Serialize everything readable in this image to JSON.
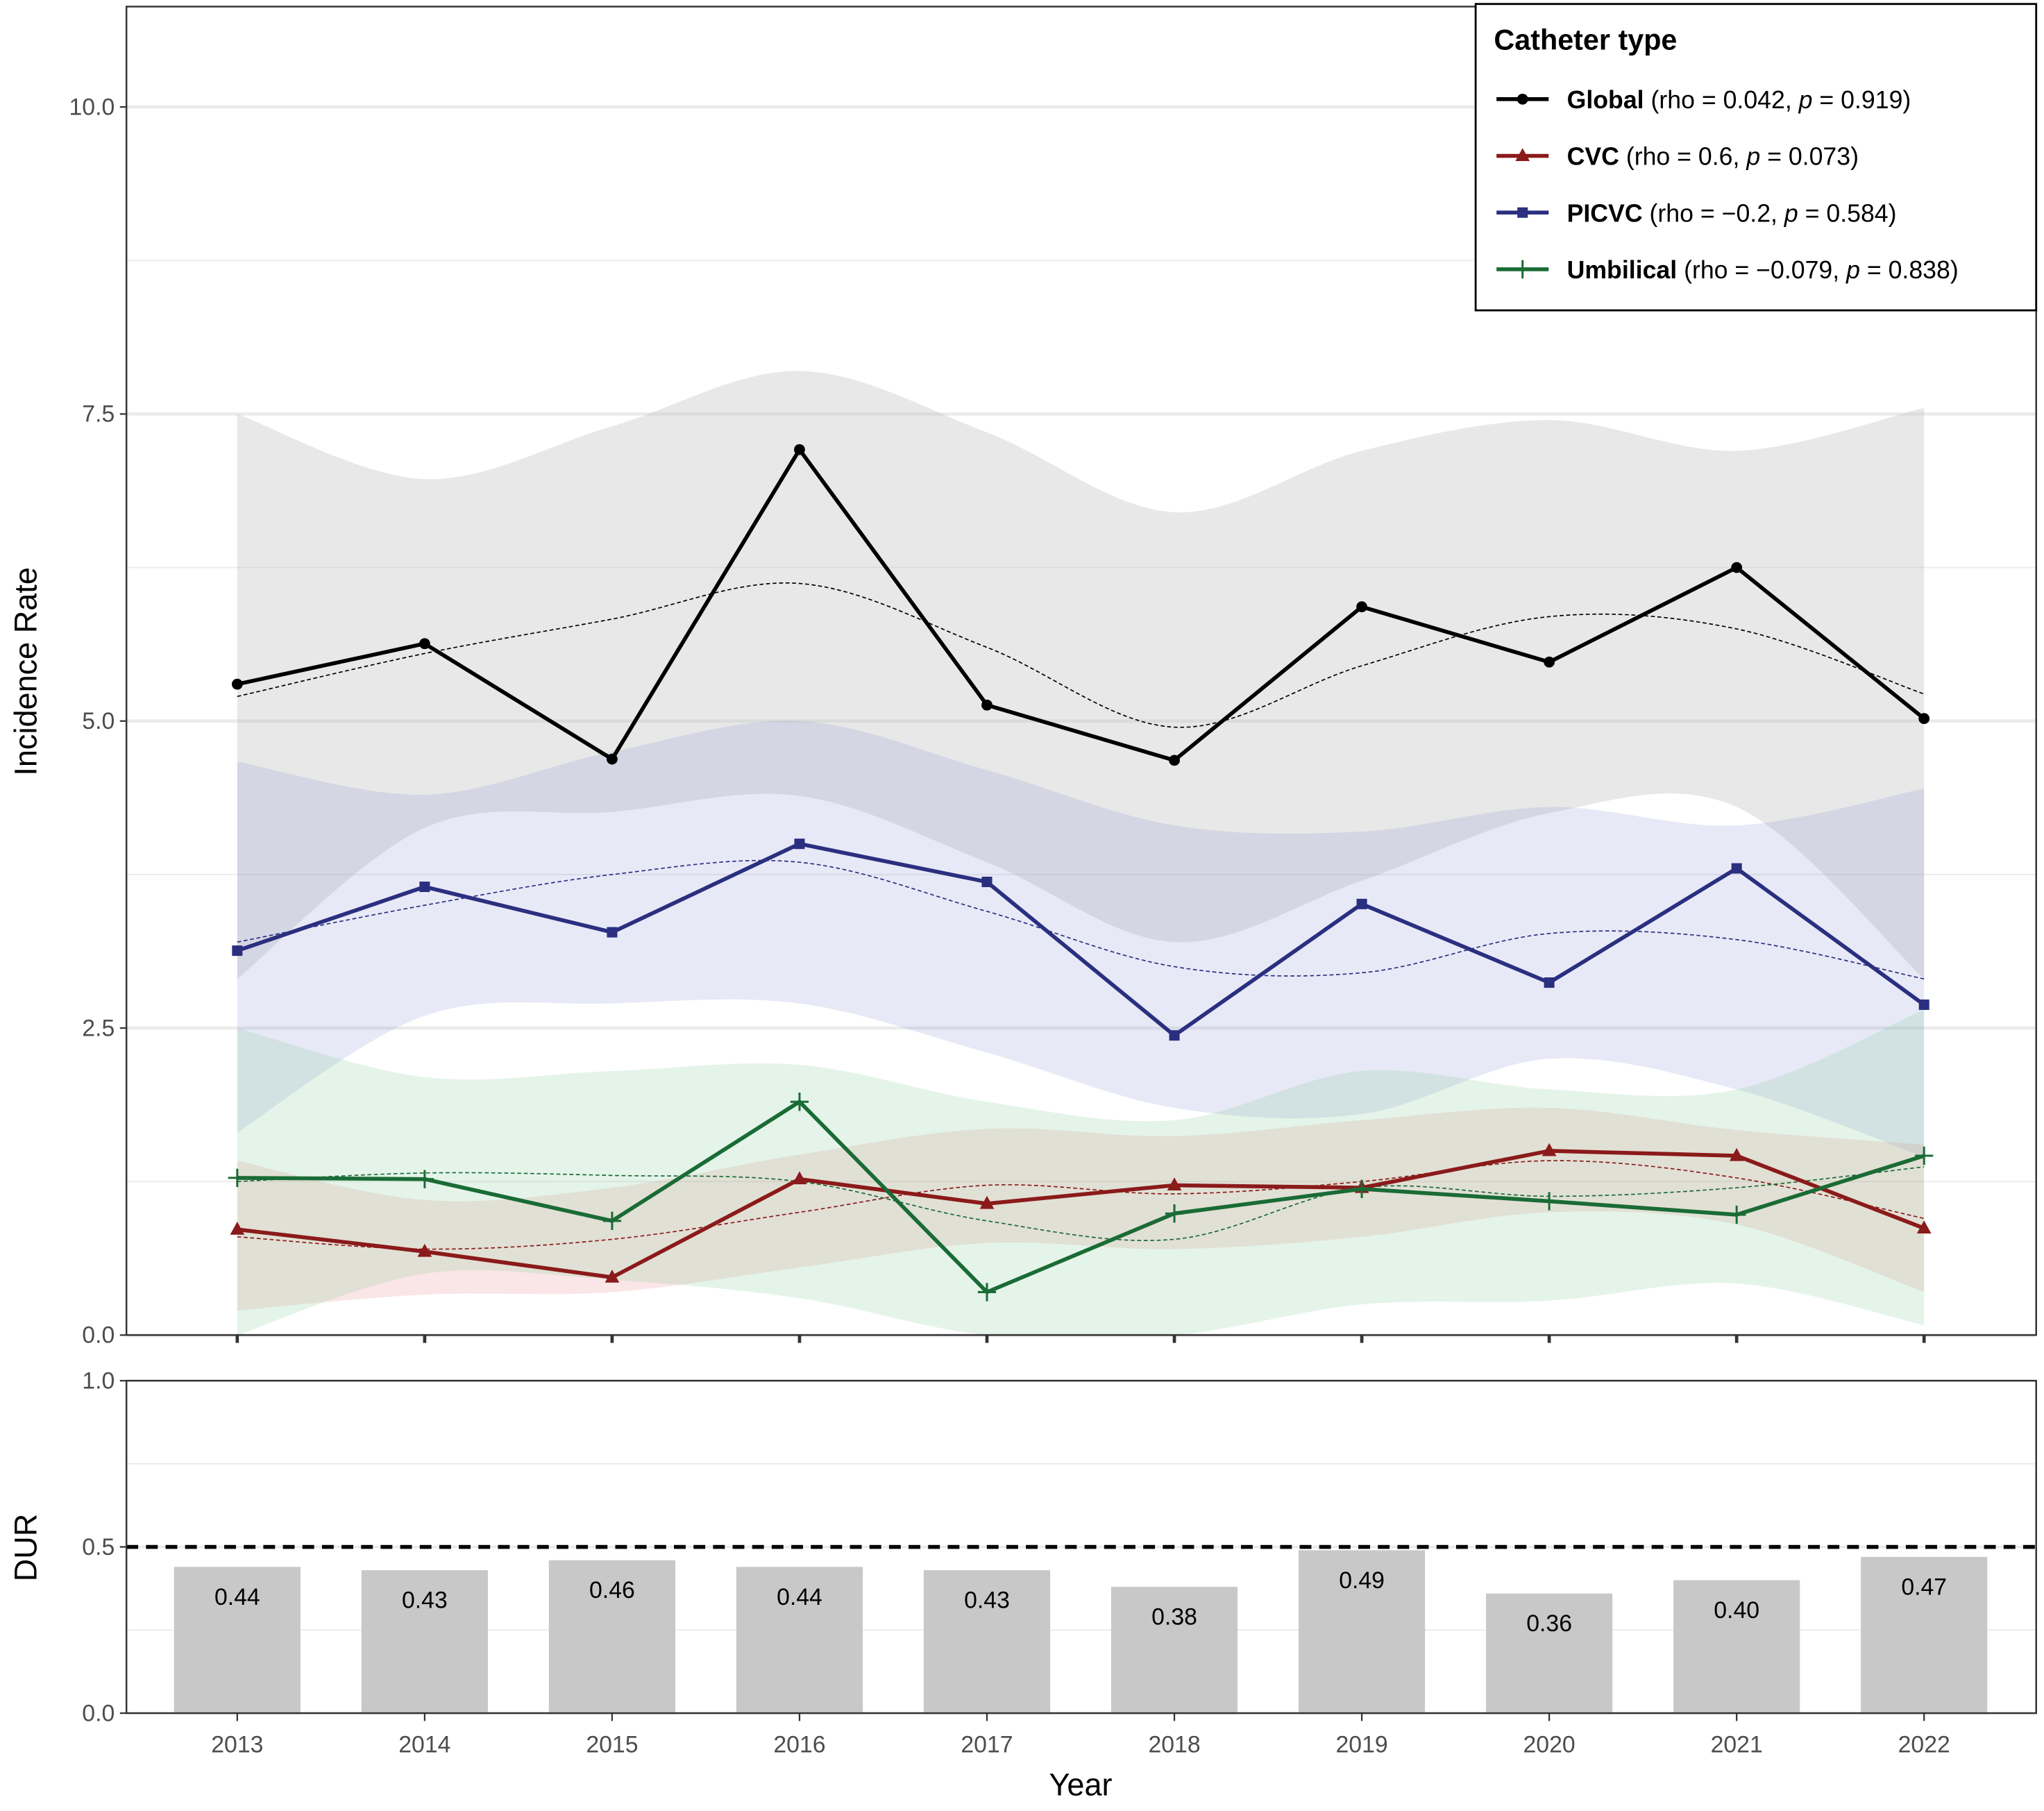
{
  "chart_data": [
    {
      "type": "line",
      "ylabel": "Incidence Rate",
      "x": [
        2013,
        2014,
        2015,
        2016,
        2017,
        2018,
        2019,
        2020,
        2021,
        2022
      ],
      "ylim": [
        0,
        10.8
      ],
      "yticks": [
        "0.0",
        "2.5",
        "5.0",
        "7.5",
        "10.0"
      ],
      "grid": true,
      "legend": {
        "title": "Catheter type",
        "placement": "top-right"
      },
      "series": [
        {
          "name": "Global",
          "stats_rho": "(rho = 0.042, ",
          "p_label": "p",
          "stats_p": " = 0.919)",
          "color": "#000000",
          "ribbon": "#bdbdbd",
          "marker": "circle",
          "values": [
            5.3,
            5.63,
            4.69,
            7.21,
            5.13,
            4.68,
            5.93,
            5.48,
            6.25,
            5.02
          ],
          "smooth": [
            5.2,
            5.55,
            5.83,
            6.12,
            5.6,
            4.95,
            5.45,
            5.85,
            5.75,
            5.22
          ],
          "upper": [
            7.5,
            6.97,
            7.4,
            7.85,
            7.35,
            6.7,
            7.2,
            7.45,
            7.2,
            7.55
          ],
          "lower": [
            2.9,
            4.13,
            4.26,
            4.39,
            3.85,
            3.2,
            3.7,
            4.25,
            4.3,
            2.9
          ]
        },
        {
          "name": "CVC",
          "stats_rho": "(rho = 0.6, ",
          "p_label": "p",
          "stats_p": " = 0.073)",
          "color": "#8b1a1a",
          "ribbon": "#e88080",
          "marker": "triangle",
          "values": [
            0.86,
            0.68,
            0.47,
            1.27,
            1.07,
            1.22,
            1.2,
            1.5,
            1.46,
            0.87
          ],
          "smooth": [
            0.8,
            0.7,
            0.78,
            1.0,
            1.22,
            1.15,
            1.25,
            1.42,
            1.28,
            0.95
          ],
          "upper": [
            1.42,
            1.1,
            1.2,
            1.47,
            1.68,
            1.62,
            1.75,
            1.85,
            1.67,
            1.55
          ],
          "lower": [
            0.2,
            0.33,
            0.35,
            0.55,
            0.75,
            0.7,
            0.8,
            1.0,
            0.9,
            0.35
          ]
        },
        {
          "name": "PICVC",
          "stats_rho": "(rho = −0.2, ",
          "p_label": "p",
          "stats_p": " = 0.584)",
          "color": "#2a2f7f",
          "ribbon": "#8c90d8",
          "marker": "square",
          "values": [
            3.13,
            3.65,
            3.28,
            4.0,
            3.69,
            2.44,
            3.51,
            2.87,
            3.8,
            2.69
          ],
          "smooth": [
            3.2,
            3.5,
            3.75,
            3.85,
            3.45,
            3.0,
            2.95,
            3.27,
            3.22,
            2.9
          ],
          "upper": [
            4.67,
            4.4,
            4.75,
            5.0,
            4.6,
            4.15,
            4.1,
            4.3,
            4.15,
            4.45
          ],
          "lower": [
            1.65,
            2.6,
            2.7,
            2.7,
            2.3,
            1.85,
            1.8,
            2.25,
            2.0,
            1.45
          ]
        },
        {
          "name": "Umbilical",
          "stats_rho": "(rho = −0.079, ",
          "p_label": "p",
          "stats_p": " = 0.838)",
          "color": "#1a6b35",
          "ribbon": "#7fc98f",
          "marker": "plus",
          "values": [
            1.28,
            1.27,
            0.93,
            1.9,
            0.35,
            0.99,
            1.19,
            1.09,
            0.98,
            1.46
          ],
          "smooth": [
            1.25,
            1.32,
            1.3,
            1.25,
            0.93,
            0.78,
            1.2,
            1.13,
            1.2,
            1.37
          ],
          "upper": [
            2.5,
            2.1,
            2.15,
            2.2,
            1.9,
            1.75,
            2.15,
            2.0,
            2.0,
            2.65
          ],
          "lower": [
            0.0,
            0.5,
            0.45,
            0.3,
            0.0,
            0.0,
            0.25,
            0.28,
            0.42,
            0.08
          ]
        }
      ]
    },
    {
      "type": "bar",
      "xlabel": "Year",
      "ylabel": "DUR",
      "categories": [
        "2013",
        "2014",
        "2015",
        "2016",
        "2017",
        "2018",
        "2019",
        "2020",
        "2021",
        "2022"
      ],
      "values": [
        0.44,
        0.43,
        0.46,
        0.44,
        0.43,
        0.38,
        0.49,
        0.36,
        0.4,
        0.47
      ],
      "labels": [
        "0.44",
        "0.43",
        "0.46",
        "0.44",
        "0.43",
        "0.38",
        "0.49",
        "0.36",
        "0.40",
        "0.47"
      ],
      "ylim": [
        0,
        1
      ],
      "yticks": [
        "0.0",
        "0.5",
        "1.0"
      ],
      "reference_line": 0.5,
      "bar_color": "#c8c8c8"
    }
  ]
}
